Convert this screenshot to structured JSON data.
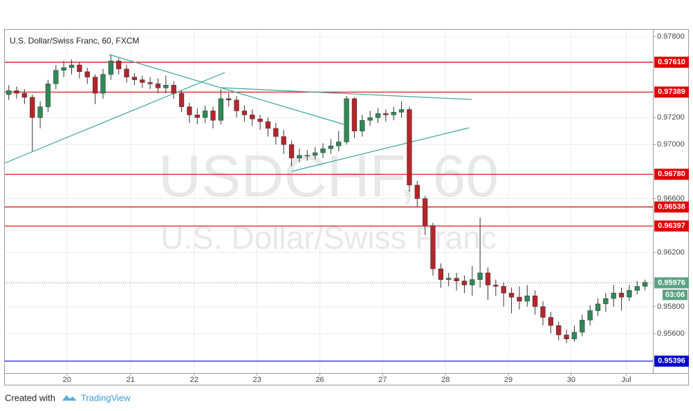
{
  "chart_data": {
    "type": "candlestick",
    "title": "U.S. Dollar/Swiss Franc, 60, FXCM",
    "watermark": "USDCHF, 60",
    "watermark_subtitle": "U.S. Dollar/Swiss Franc",
    "up_color": "#2f8a56",
    "down_color": "#b3262b",
    "wick_color": "#333333",
    "grid": true,
    "x": [
      0,
      1,
      2,
      3,
      4,
      5,
      6,
      7,
      8,
      9,
      10,
      11,
      12,
      13,
      14,
      15,
      16,
      17,
      18,
      19,
      20,
      21,
      22,
      23,
      24,
      25,
      26,
      27,
      28,
      29,
      30,
      31,
      32,
      33,
      34,
      35,
      36,
      37,
      38,
      39,
      40,
      41,
      42,
      43,
      44,
      45,
      46,
      47,
      48,
      49,
      50,
      51,
      52,
      53,
      54,
      55,
      56,
      57,
      58,
      59,
      60,
      61,
      62,
      63,
      64,
      65,
      66,
      67,
      68,
      69,
      70,
      71,
      72,
      73,
      74,
      75,
      76,
      77,
      78,
      79,
      80,
      81
    ],
    "open": [
      0.9737,
      0.974,
      0.9738,
      0.9735,
      0.972,
      0.9728,
      0.9745,
      0.9755,
      0.9757,
      0.9759,
      0.9754,
      0.975,
      0.9738,
      0.9752,
      0.9762,
      0.9756,
      0.975,
      0.9748,
      0.9746,
      0.9745,
      0.9742,
      0.9744,
      0.9738,
      0.9728,
      0.9722,
      0.972,
      0.9725,
      0.9718,
      0.9734,
      0.9733,
      0.9725,
      0.9722,
      0.9719,
      0.9717,
      0.9712,
      0.9706,
      0.97,
      0.969,
      0.9692,
      0.9692,
      0.9694,
      0.9697,
      0.9699,
      0.9702,
      0.9734,
      0.971,
      0.9718,
      0.972,
      0.9723,
      0.9722,
      0.9724,
      0.9726,
      0.967,
      0.966,
      0.964,
      0.9608,
      0.96,
      0.9601,
      0.9599,
      0.9596,
      0.96,
      0.9605,
      0.9596,
      0.9595,
      0.959,
      0.9587,
      0.9584,
      0.9588,
      0.958,
      0.9572,
      0.9566,
      0.9559,
      0.9556,
      0.9561,
      0.957,
      0.9577,
      0.9582,
      0.9586,
      0.959,
      0.9587,
      0.9592,
      0.9595
    ],
    "high": [
      0.9744,
      0.9743,
      0.9741,
      0.9737,
      0.9732,
      0.9748,
      0.9759,
      0.9762,
      0.9763,
      0.9761,
      0.9757,
      0.9752,
      0.9756,
      0.9766,
      0.9764,
      0.9759,
      0.9753,
      0.9751,
      0.975,
      0.9749,
      0.9751,
      0.9747,
      0.974,
      0.9731,
      0.9727,
      0.9729,
      0.9728,
      0.9741,
      0.9738,
      0.9736,
      0.9729,
      0.9726,
      0.9722,
      0.972,
      0.9716,
      0.9711,
      0.9703,
      0.9697,
      0.9696,
      0.9698,
      0.9701,
      0.9704,
      0.971,
      0.9736,
      0.9735,
      0.9722,
      0.9725,
      0.9727,
      0.9726,
      0.9728,
      0.9732,
      0.9728,
      0.9673,
      0.9662,
      0.9642,
      0.9612,
      0.9605,
      0.9605,
      0.9603,
      0.961,
      0.9646,
      0.9609,
      0.96,
      0.9598,
      0.9594,
      0.9595,
      0.9596,
      0.9592,
      0.9584,
      0.9576,
      0.9569,
      0.9563,
      0.9566,
      0.9574,
      0.9581,
      0.9586,
      0.959,
      0.9596,
      0.9594,
      0.9596,
      0.9599,
      0.96
    ],
    "low": [
      0.9733,
      0.9734,
      0.973,
      0.9695,
      0.9712,
      0.9724,
      0.9741,
      0.975,
      0.9752,
      0.9749,
      0.9745,
      0.973,
      0.9734,
      0.9748,
      0.9752,
      0.9746,
      0.9744,
      0.9742,
      0.9741,
      0.9738,
      0.9738,
      0.9734,
      0.9724,
      0.9716,
      0.9715,
      0.9716,
      0.9712,
      0.9715,
      0.9728,
      0.972,
      0.9717,
      0.9714,
      0.9711,
      0.9706,
      0.97,
      0.9693,
      0.9684,
      0.9687,
      0.9688,
      0.9689,
      0.969,
      0.9693,
      0.9695,
      0.97,
      0.9705,
      0.9706,
      0.9714,
      0.9716,
      0.9717,
      0.9718,
      0.972,
      0.9665,
      0.9654,
      0.9633,
      0.9603,
      0.9594,
      0.9595,
      0.9592,
      0.959,
      0.9588,
      0.9594,
      0.9585,
      0.9588,
      0.958,
      0.9575,
      0.9578,
      0.958,
      0.9574,
      0.9566,
      0.956,
      0.9555,
      0.9553,
      0.9554,
      0.9558,
      0.9566,
      0.9573,
      0.9576,
      0.958,
      0.9577,
      0.9584,
      0.9589,
      0.9592
    ],
    "close": [
      0.974,
      0.9738,
      0.9735,
      0.972,
      0.9728,
      0.9745,
      0.9755,
      0.9757,
      0.9759,
      0.9754,
      0.975,
      0.9738,
      0.9752,
      0.9762,
      0.9756,
      0.975,
      0.9748,
      0.9746,
      0.9745,
      0.9742,
      0.9744,
      0.9738,
      0.9728,
      0.9722,
      0.972,
      0.9725,
      0.9718,
      0.9734,
      0.9733,
      0.9725,
      0.9722,
      0.9719,
      0.9717,
      0.9712,
      0.9706,
      0.97,
      0.969,
      0.9692,
      0.9692,
      0.9694,
      0.9697,
      0.9699,
      0.9702,
      0.9734,
      0.971,
      0.9718,
      0.972,
      0.9723,
      0.9722,
      0.9724,
      0.9726,
      0.967,
      0.966,
      0.964,
      0.9608,
      0.96,
      0.9601,
      0.9599,
      0.9596,
      0.96,
      0.9605,
      0.9596,
      0.9595,
      0.959,
      0.9587,
      0.9584,
      0.9588,
      0.958,
      0.9572,
      0.9566,
      0.9559,
      0.9556,
      0.9561,
      0.957,
      0.9577,
      0.9582,
      0.9586,
      0.959,
      0.9587,
      0.9592,
      0.9595,
      0.9598
    ],
    "xlim": [
      -0.5,
      82
    ],
    "ylim": [
      0.95308,
      0.97851
    ],
    "xticks": [
      {
        "value": 7.4,
        "label": "20"
      },
      {
        "value": 15.5,
        "label": "21"
      },
      {
        "value": 23.6,
        "label": "22"
      },
      {
        "value": 31.6,
        "label": "23"
      },
      {
        "value": 39.6,
        "label": "26"
      },
      {
        "value": 47.6,
        "label": "27"
      },
      {
        "value": 55.6,
        "label": "28"
      },
      {
        "value": 63.6,
        "label": "29"
      },
      {
        "value": 71.6,
        "label": "30"
      },
      {
        "value": 78.6,
        "label": "Jul"
      }
    ],
    "yticks": [
      {
        "value": 0.978,
        "label": "0.97800"
      },
      {
        "value": 0.972,
        "label": "0.97200"
      },
      {
        "value": 0.97,
        "label": "0.97000"
      },
      {
        "value": 0.966,
        "label": "0.96600"
      },
      {
        "value": 0.962,
        "label": "0.96200"
      },
      {
        "value": 0.958,
        "label": "0.95800"
      },
      {
        "value": 0.956,
        "label": "0.95600"
      }
    ],
    "levels": [
      {
        "value": 0.9761,
        "label": "0.97610",
        "color": "#e00000"
      },
      {
        "value": 0.97389,
        "label": "0.97389",
        "color": "#e00000"
      },
      {
        "value": 0.9678,
        "label": "0.96780",
        "color": "#e00000"
      },
      {
        "value": 0.96538,
        "label": "0.96538",
        "color": "#e00000"
      },
      {
        "value": 0.96397,
        "label": "0.96397",
        "color": "#e00000"
      },
      {
        "value": 0.95396,
        "label": "0.95396",
        "color": "#0000cc"
      }
    ],
    "last_price": 0.95976,
    "last_color": "#5aa384",
    "countdown": "03:06"
  },
  "footer": {
    "created_with": "Created with",
    "brand": "TradingView"
  }
}
